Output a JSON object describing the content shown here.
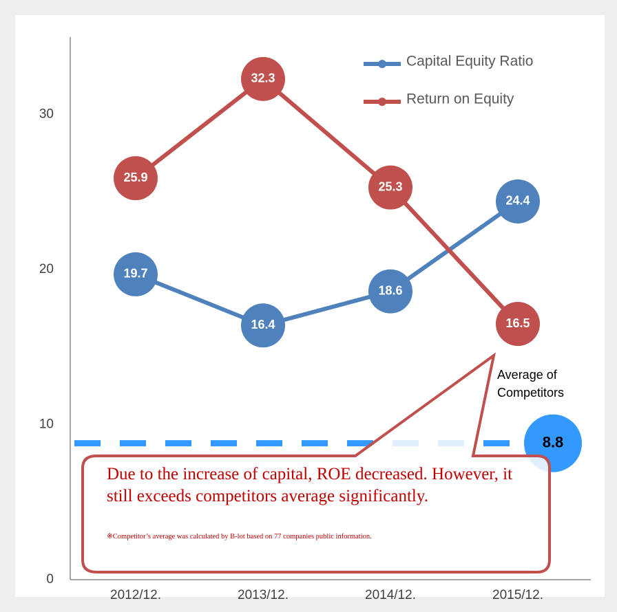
{
  "chart_data": {
    "type": "line",
    "categories": [
      "2012/12.",
      "2013/12.",
      "2014/12.",
      "2015/12."
    ],
    "series": [
      {
        "name": "Capital Equity Ratio",
        "color": "#4f81bd",
        "values": [
          19.7,
          16.4,
          18.6,
          24.4
        ]
      },
      {
        "name": "Return on Equity",
        "color": "#c0504d",
        "values": [
          25.9,
          32.3,
          25.3,
          16.5
        ]
      }
    ],
    "ylim": [
      0,
      35
    ],
    "yticks": [
      0,
      10,
      20,
      30
    ],
    "grid": false,
    "legend": "top-right",
    "reference": {
      "label": "Average of Competitors",
      "value": 8.8,
      "color": "#3399ff"
    },
    "annotation": "Due to the increase of capital, ROE decreased. However, it still exceeds competitors average significantly.",
    "note": "※Competitor’s average was calculated by B-lot based on 77 companies public information."
  }
}
